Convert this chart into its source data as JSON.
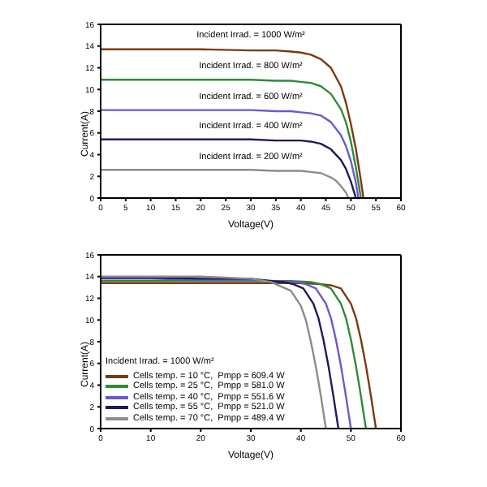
{
  "chart_data": [
    {
      "type": "line",
      "xlabel": "Voltage(V)",
      "ylabel": "Current(A)",
      "xlim": [
        0,
        60
      ],
      "xticks": [
        0,
        5,
        10,
        15,
        20,
        25,
        30,
        35,
        40,
        45,
        50,
        55,
        60
      ],
      "ylim": [
        0,
        16
      ],
      "yticks": [
        0,
        2,
        4,
        6,
        8,
        10,
        12,
        14,
        16
      ],
      "legend": false,
      "grid": false,
      "marker": "none",
      "line_style": "solid",
      "annotations": [
        "Incident Irrad. = 1000 W/m²",
        "Incident Irrad. = 800 W/m²",
        "Incident Irrad. = 600 W/m²",
        "Incident Irrad. = 400 W/m²",
        "Incident Irrad. = 200 W/m²"
      ],
      "series": [
        {
          "color": "#7a3a10",
          "x": [
            0,
            10,
            20,
            30,
            35,
            38,
            40,
            42,
            44,
            46,
            48,
            49,
            50,
            51,
            52,
            52.5
          ],
          "values": [
            13.7,
            13.7,
            13.7,
            13.6,
            13.6,
            13.5,
            13.4,
            13.2,
            12.8,
            12.0,
            10.3,
            8.8,
            6.8,
            4.5,
            1.6,
            0
          ]
        },
        {
          "color": "#2e8b3a",
          "x": [
            0,
            10,
            20,
            30,
            35,
            38,
            40,
            42,
            44,
            46,
            48,
            49,
            50,
            51,
            52
          ],
          "values": [
            10.9,
            10.9,
            10.9,
            10.9,
            10.8,
            10.8,
            10.7,
            10.6,
            10.3,
            9.6,
            8.2,
            7.0,
            5.2,
            2.8,
            0
          ]
        },
        {
          "color": "#6a5acd",
          "x": [
            0,
            10,
            20,
            30,
            35,
            38,
            40,
            42,
            44,
            46,
            48,
            49,
            50,
            51,
            51.5
          ],
          "values": [
            8.1,
            8.1,
            8.1,
            8.1,
            8.0,
            8.0,
            7.9,
            7.8,
            7.6,
            7.0,
            5.8,
            4.8,
            3.4,
            1.4,
            0
          ]
        },
        {
          "color": "#1c1c5c",
          "x": [
            0,
            10,
            20,
            30,
            35,
            38,
            40,
            42,
            44,
            46,
            48,
            49,
            50,
            51
          ],
          "values": [
            5.4,
            5.4,
            5.4,
            5.4,
            5.3,
            5.3,
            5.3,
            5.2,
            5.0,
            4.5,
            3.5,
            2.7,
            1.5,
            0
          ]
        },
        {
          "color": "#8c8c8c",
          "x": [
            0,
            10,
            20,
            30,
            35,
            38,
            40,
            42,
            44,
            46,
            47,
            48,
            49,
            49.5
          ],
          "values": [
            2.6,
            2.6,
            2.6,
            2.6,
            2.5,
            2.5,
            2.5,
            2.4,
            2.3,
            1.9,
            1.6,
            1.1,
            0.5,
            0
          ]
        }
      ]
    },
    {
      "type": "line",
      "xlabel": "Voltage(V)",
      "ylabel": "Current(A)",
      "xlim": [
        0,
        60
      ],
      "xticks": [
        0,
        10,
        20,
        30,
        40,
        50,
        60
      ],
      "ylim": [
        0,
        16
      ],
      "yticks": [
        0,
        2,
        4,
        6,
        8,
        10,
        12,
        14,
        16
      ],
      "legend": "bottom left",
      "legend_title": "Incident Irrad. = 1000 W/m²",
      "grid": false,
      "marker": "none",
      "line_style": "solid",
      "series": [
        {
          "name": "Cells temp. = 10 °C,  Pmpp = 609.4 W",
          "color": "#7a3a10",
          "x": [
            0,
            10,
            20,
            30,
            35,
            40,
            44,
            46,
            48,
            50,
            51,
            52,
            53,
            54,
            55
          ],
          "values": [
            13.4,
            13.4,
            13.4,
            13.4,
            13.4,
            13.4,
            13.3,
            13.2,
            12.9,
            11.5,
            10.2,
            8.2,
            5.8,
            3,
            0
          ]
        },
        {
          "name": "Cells temp. = 25 °C,  Pmpp = 581.0 W",
          "color": "#2e8b3a",
          "x": [
            0,
            10,
            20,
            30,
            35,
            38,
            42,
            44,
            46,
            48,
            49,
            50,
            51,
            52,
            53
          ],
          "values": [
            13.6,
            13.6,
            13.6,
            13.6,
            13.6,
            13.6,
            13.5,
            13.3,
            12.9,
            11.5,
            10.2,
            8.2,
            5.8,
            3,
            0
          ]
        },
        {
          "name": "Cells temp. = 40 °C,  Pmpp = 551.6 W",
          "color": "#6a5acd",
          "x": [
            0,
            10,
            20,
            30,
            35,
            39,
            41,
            43,
            45,
            46,
            47,
            48,
            49,
            50
          ],
          "values": [
            13.8,
            13.8,
            13.7,
            13.7,
            13.6,
            13.5,
            13.3,
            12.9,
            11.5,
            10.2,
            8.2,
            5.8,
            3,
            0
          ]
        },
        {
          "name": "Cells temp. = 55 °C,  Pmpp = 521.0 W",
          "color": "#1c1c5c",
          "x": [
            0,
            10,
            20,
            30,
            34,
            36.5,
            38.5,
            40.5,
            42.5,
            43.5,
            44.5,
            45.5,
            46.5,
            47.5
          ],
          "values": [
            13.9,
            13.9,
            13.8,
            13.8,
            13.6,
            13.5,
            13.3,
            12.9,
            11.5,
            10.2,
            8.2,
            5.8,
            3,
            0
          ]
        },
        {
          "name": "Cells temp. = 70 °C,  Pmpp = 489.4 W",
          "color": "#8c8c8c",
          "x": [
            0,
            10,
            20,
            30,
            34,
            36,
            38,
            40,
            41,
            42,
            43,
            44,
            45
          ],
          "values": [
            14.0,
            14.0,
            14.0,
            13.8,
            13.5,
            13.1,
            12.7,
            11.3,
            10.0,
            8.0,
            5.7,
            3,
            0
          ]
        }
      ]
    }
  ]
}
